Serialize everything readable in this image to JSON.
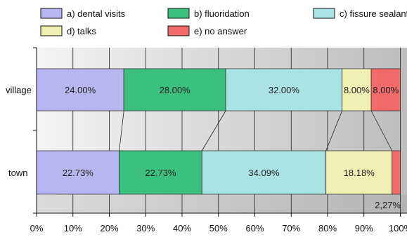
{
  "chart_data": {
    "type": "bar",
    "orientation": "horizontal",
    "stacked": true,
    "normalized": true,
    "categories": [
      "village",
      "town"
    ],
    "series": [
      {
        "name": "a) dental visits",
        "values": [
          24.0,
          22.73
        ],
        "color": "#b7b6f0",
        "labels": [
          "24.00%",
          "22.73%"
        ]
      },
      {
        "name": "b) fluoridation",
        "values": [
          28.0,
          22.73
        ],
        "color": "#3cc07f",
        "labels": [
          "28.00%",
          "22.73%"
        ]
      },
      {
        "name": "c) fissure sealants",
        "values": [
          32.0,
          34.09
        ],
        "color": "#a9e3e3",
        "labels": [
          "32.00%",
          "34.09%"
        ]
      },
      {
        "name": "d) talks",
        "values": [
          8.0,
          18.18
        ],
        "color": "#f1f0b4",
        "labels": [
          "8.00%",
          "18.18%"
        ]
      },
      {
        "name": "e) no answer",
        "values": [
          8.0,
          2.27
        ],
        "color": "#f26a6a",
        "labels": [
          "8.00%",
          ""
        ]
      }
    ],
    "xlim": [
      0,
      100
    ],
    "x_ticks": [
      "0%",
      "10%",
      "20%",
      "30%",
      "40%",
      "50%",
      "60%",
      "70%",
      "80%",
      "90%",
      "100%"
    ],
    "grid": true,
    "legend_position": "top",
    "annotations": [
      "2,27%"
    ]
  }
}
